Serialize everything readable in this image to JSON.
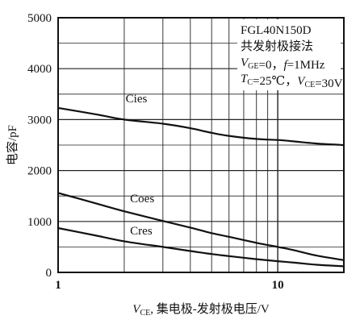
{
  "chart_data": {
    "type": "line",
    "xscale": "log",
    "xlim": [
      1,
      20
    ],
    "ylim": [
      0,
      5000
    ],
    "xticks": [
      1,
      10
    ],
    "xtick_labels": [
      "1",
      "10"
    ],
    "yticks": [
      0,
      1000,
      2000,
      3000,
      4000,
      5000
    ],
    "ytick_labels": [
      "0",
      "1000",
      "2000",
      "3000",
      "4000",
      "5000"
    ],
    "ylabel": "电容/pF",
    "xlabel": {
      "symbol": "V",
      "subscript": "CE",
      "rest": ", 集电极-发射极电压/V"
    },
    "grid": true,
    "annotation": [
      {
        "text": "FGL40N150D"
      },
      {
        "text": "共发射极接法"
      },
      {
        "parts": [
          {
            "t": "V",
            "style": "italic"
          },
          {
            "t": "GE",
            "style": "sub"
          },
          {
            "t": "=0，"
          },
          {
            "t": "f",
            "style": "italic"
          },
          {
            "t": "=1MHz"
          }
        ]
      },
      {
        "parts": [
          {
            "t": "T",
            "style": "italic"
          },
          {
            "t": "C",
            "style": "sub"
          },
          {
            "t": "=25℃，"
          },
          {
            "t": "V",
            "style": "italic"
          },
          {
            "t": "CE",
            "style": "sub"
          },
          {
            "t": "=30V"
          }
        ]
      }
    ],
    "series": [
      {
        "name": "Cies",
        "x": [
          1,
          1.5,
          2,
          3,
          4,
          5,
          6,
          8,
          10,
          12,
          15,
          20
        ],
        "y": [
          3230,
          3100,
          3000,
          2920,
          2830,
          2740,
          2680,
          2620,
          2600,
          2570,
          2530,
          2500
        ]
      },
      {
        "name": "Coes",
        "x": [
          1,
          1.5,
          2,
          3,
          4,
          5,
          6,
          8,
          10,
          12,
          15,
          20
        ],
        "y": [
          1560,
          1350,
          1200,
          1010,
          880,
          770,
          700,
          580,
          500,
          430,
          330,
          240
        ]
      },
      {
        "name": "Cres",
        "x": [
          1,
          1.5,
          2,
          3,
          4,
          5,
          6,
          8,
          10,
          12,
          15,
          20
        ],
        "y": [
          870,
          720,
          610,
          500,
          420,
          360,
          320,
          260,
          220,
          190,
          150,
          120
        ]
      }
    ]
  }
}
